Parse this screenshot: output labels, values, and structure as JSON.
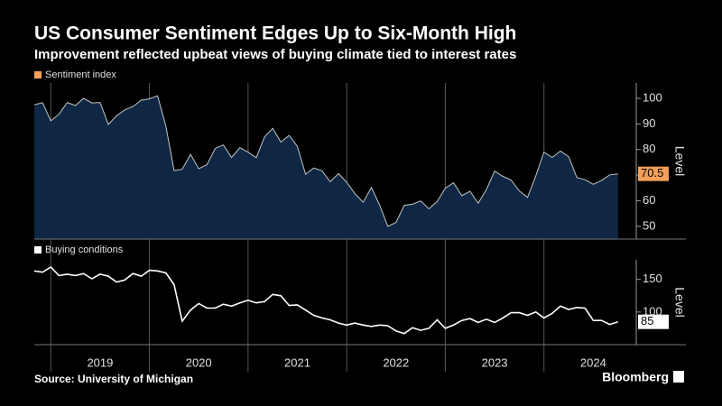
{
  "header": {
    "title": "US Consumer Sentiment Edges Up to Six-Month High",
    "subtitle": "Improvement reflected upbeat views of buying climate tied to interest rates"
  },
  "footer": {
    "source": "Source: University of Michigan",
    "brand": "Bloomberg"
  },
  "chart_data": [
    {
      "type": "area",
      "ylabel": "Level",
      "fill": "#0f2744",
      "line_color": "#c4c4c4",
      "x": [
        2018.833,
        2018.917,
        2019,
        2019.083,
        2019.167,
        2019.25,
        2019.333,
        2019.417,
        2019.5,
        2019.583,
        2019.667,
        2019.75,
        2019.833,
        2019.917,
        2020,
        2020.083,
        2020.167,
        2020.25,
        2020.333,
        2020.417,
        2020.5,
        2020.583,
        2020.667,
        2020.75,
        2020.833,
        2020.917,
        2021,
        2021.083,
        2021.167,
        2021.25,
        2021.333,
        2021.417,
        2021.5,
        2021.583,
        2021.667,
        2021.75,
        2021.833,
        2021.917,
        2022,
        2022.083,
        2022.167,
        2022.25,
        2022.333,
        2022.417,
        2022.5,
        2022.583,
        2022.667,
        2022.75,
        2022.833,
        2022.917,
        2023,
        2023.083,
        2023.167,
        2023.25,
        2023.333,
        2023.417,
        2023.5,
        2023.583,
        2023.667,
        2023.75,
        2023.833,
        2023.917,
        2024,
        2024.083,
        2024.167,
        2024.25,
        2024.333,
        2024.417,
        2024.5,
        2024.583,
        2024.667,
        2024.75
      ],
      "xlim": [
        2018.833,
        2024.89
      ],
      "series": [
        {
          "name": "Sentiment index",
          "color": "#f5a05a",
          "values": [
            97.5,
            98.3,
            91.2,
            93.8,
            98.4,
            97.2,
            100.0,
            98.2,
            98.4,
            89.8,
            93.2,
            95.5,
            96.8,
            99.3,
            99.8,
            101.0,
            89.1,
            71.8,
            72.3,
            78.1,
            72.5,
            74.1,
            80.4,
            81.8,
            76.9,
            80.7,
            79.0,
            76.8,
            84.9,
            88.3,
            82.9,
            85.5,
            81.2,
            70.3,
            72.8,
            71.7,
            67.4,
            70.6,
            67.2,
            62.8,
            59.4,
            65.2,
            58.4,
            50.0,
            51.5,
            58.2,
            58.6,
            59.9,
            56.8,
            59.7,
            64.9,
            67.0,
            62.0,
            63.7,
            59.0,
            64.4,
            71.6,
            69.5,
            68.1,
            63.8,
            61.3,
            69.7,
            79.0,
            76.9,
            79.4,
            77.2,
            69.1,
            68.2,
            66.4,
            67.9,
            70.1,
            70.5
          ]
        }
      ],
      "ylim": [
        45,
        106
      ],
      "yticks": [
        50,
        60,
        70,
        80,
        90,
        100
      ]
    },
    {
      "type": "line",
      "ylabel": "Level",
      "x": [
        2018.833,
        2018.917,
        2019,
        2019.083,
        2019.167,
        2019.25,
        2019.333,
        2019.417,
        2019.5,
        2019.583,
        2019.667,
        2019.75,
        2019.833,
        2019.917,
        2020,
        2020.083,
        2020.167,
        2020.25,
        2020.333,
        2020.417,
        2020.5,
        2020.583,
        2020.667,
        2020.75,
        2020.833,
        2020.917,
        2021,
        2021.083,
        2021.167,
        2021.25,
        2021.333,
        2021.417,
        2021.5,
        2021.583,
        2021.667,
        2021.75,
        2021.833,
        2021.917,
        2022,
        2022.083,
        2022.167,
        2022.25,
        2022.333,
        2022.417,
        2022.5,
        2022.583,
        2022.667,
        2022.75,
        2022.833,
        2022.917,
        2023,
        2023.083,
        2023.167,
        2023.25,
        2023.333,
        2023.417,
        2023.5,
        2023.583,
        2023.667,
        2023.75,
        2023.833,
        2023.917,
        2024,
        2024.083,
        2024.167,
        2024.25,
        2024.333,
        2024.417,
        2024.5,
        2024.583,
        2024.667,
        2024.75
      ],
      "xlim": [
        2018.833,
        2024.89
      ],
      "xticks": [
        2019,
        2020,
        2021,
        2022,
        2023,
        2024
      ],
      "series": [
        {
          "name": "Buying conditions",
          "color": "#ffffff",
          "values": [
            163,
            161,
            169,
            156,
            158,
            156,
            159,
            151,
            158,
            155,
            146,
            149,
            159,
            155,
            164,
            163,
            160,
            142,
            86,
            103,
            113,
            106,
            106,
            112,
            109,
            114,
            118,
            114,
            116,
            127,
            125,
            110,
            111,
            103,
            95,
            91,
            88,
            83,
            80,
            83,
            80,
            78,
            80,
            79,
            71,
            67,
            76,
            72,
            75,
            88,
            75,
            80,
            87,
            90,
            84,
            89,
            84,
            91,
            99,
            99,
            95,
            100,
            91,
            98,
            109,
            104,
            107,
            106,
            87,
            87,
            81,
            85
          ]
        }
      ],
      "ylim": [
        50,
        180
      ],
      "yticks": [
        100,
        150
      ]
    }
  ]
}
